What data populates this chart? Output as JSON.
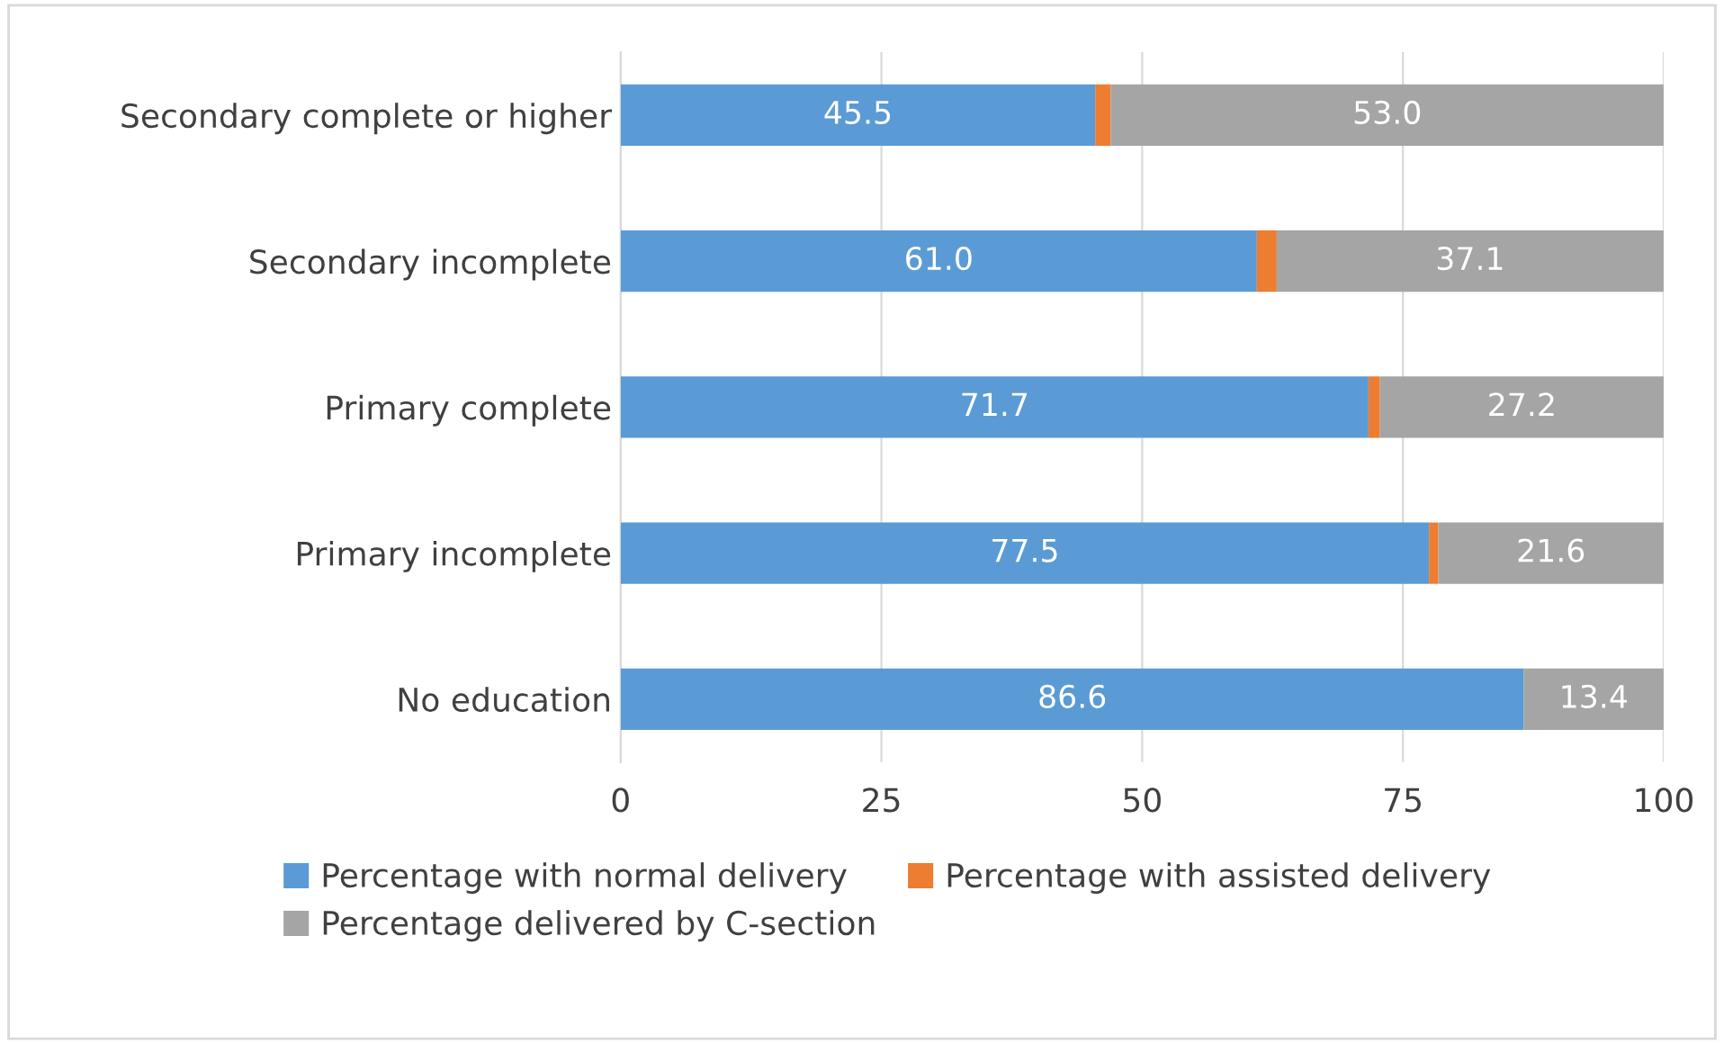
{
  "chart_data": {
    "type": "bar",
    "orientation": "horizontal",
    "stacked": true,
    "categories": [
      "Secondary complete or higher",
      "Secondary incomplete",
      "Primary complete",
      "Primary incomplete",
      "No education"
    ],
    "series": [
      {
        "name": "Percentage with normal delivery",
        "color": "#5b9bd5",
        "values": [
          45.5,
          61.0,
          71.7,
          77.5,
          86.6
        ],
        "value_labels": [
          "45.5",
          "61.0",
          "71.7",
          "77.5",
          "86.6"
        ]
      },
      {
        "name": "Percentage with assisted delivery",
        "color": "#ed7d31",
        "values": [
          1.5,
          1.9,
          1.1,
          0.9,
          0
        ],
        "value_labels": [
          null,
          null,
          null,
          null,
          null
        ]
      },
      {
        "name": "Percentage delivered by C-section",
        "color": "#a5a5a5",
        "values": [
          53.0,
          37.1,
          27.2,
          21.6,
          13.4
        ],
        "value_labels": [
          "53.0",
          "37.1",
          "27.2",
          "21.6",
          "13.4"
        ]
      }
    ],
    "xlim": [
      0,
      100
    ],
    "xticks": [
      0,
      25,
      50,
      75,
      100
    ],
    "grid": "x",
    "legend": "bottom"
  }
}
